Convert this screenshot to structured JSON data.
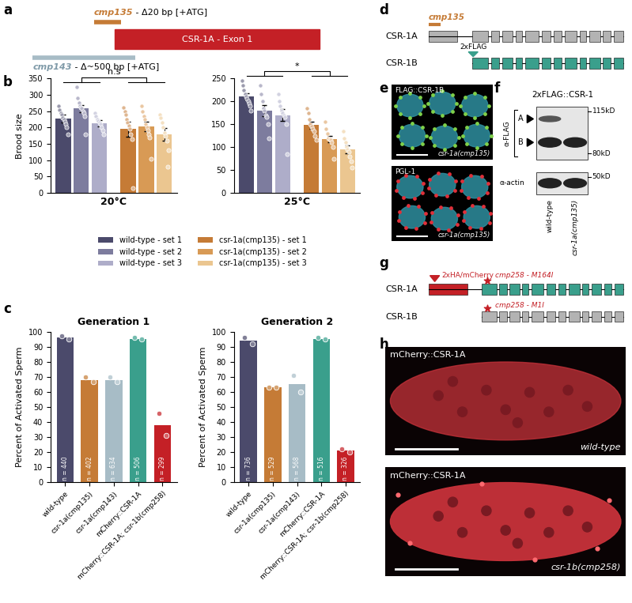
{
  "panel_labels": [
    "a",
    "b",
    "c",
    "d",
    "e",
    "f",
    "g",
    "h"
  ],
  "chart_data": [
    {
      "type": "bar",
      "ylabel": "Brood size",
      "categories": [
        "20°C"
      ],
      "ylim": [
        0,
        350
      ],
      "yticks": [
        0,
        50,
        100,
        150,
        200,
        250,
        300,
        350
      ],
      "significance": "n.s",
      "legend": "bottom",
      "series": [
        {
          "name": "wild-type - set 1",
          "color": "#4b4a6b",
          "values": [
            228
          ],
          "errors": [
            12
          ],
          "points": [
            [
              265,
              255,
              245,
              240,
              230,
              225,
              218,
              210,
              200,
              180
            ]
          ]
        },
        {
          "name": "wild-type - set 2",
          "color": "#7d7c9e",
          "values": [
            258
          ],
          "errors": [
            11
          ],
          "points": [
            [
              325,
              290,
              275,
              265,
              262,
              258,
              250,
              245,
              235,
              180
            ]
          ]
        },
        {
          "name": "wild-type - set 3",
          "color": "#aeadc9",
          "values": [
            213
          ],
          "errors": [
            9
          ],
          "points": [
            [
              245,
              235,
              225,
              220,
              215,
              210,
              200,
              190,
              180
            ]
          ]
        },
        {
          "name": "csr-1a(cmp135) - set 1",
          "color": "#c57b36",
          "values": [
            195
          ],
          "errors": [
            22
          ],
          "points": [
            [
              260,
              250,
              240,
              225,
              215,
              205,
              195,
              180,
              165,
              15
            ]
          ]
        },
        {
          "name": "csr-1a(cmp135) - set 2",
          "color": "#d89a55",
          "values": [
            203
          ],
          "errors": [
            15
          ],
          "points": [
            [
              265,
              250,
              235,
              225,
              210,
              200,
              190,
              180,
              170,
              105
            ]
          ]
        },
        {
          "name": "csr-1a(cmp135) - set 3",
          "color": "#ebc690",
          "values": [
            179
          ],
          "errors": [
            19
          ],
          "points": [
            [
              240,
              230,
              215,
              200,
              185,
              175,
              160,
              80,
              130
            ]
          ]
        }
      ]
    },
    {
      "type": "bar",
      "categories": [
        "25°C"
      ],
      "ylim": [
        0,
        250
      ],
      "yticks": [
        0,
        50,
        100,
        150,
        200,
        250
      ],
      "significance": "*",
      "series": [
        {
          "name": "wild-type - set 1",
          "color": "#4b4a6b",
          "values": [
            210
          ],
          "errors": [
            7
          ],
          "points": [
            [
              245,
              235,
              225,
              215,
              210,
              205,
              200,
              195,
              190,
              180
            ]
          ]
        },
        {
          "name": "wild-type - set 2",
          "color": "#7d7c9e",
          "values": [
            180
          ],
          "errors": [
            12
          ],
          "points": [
            [
              235,
              215,
              200,
              185,
              180,
              170,
              165,
              150,
              120
            ]
          ]
        },
        {
          "name": "wild-type - set 3",
          "color": "#aeadc9",
          "values": [
            170
          ],
          "errors": [
            13
          ],
          "points": [
            [
              215,
              200,
              190,
              180,
              175,
              170,
              165,
              150,
              85
            ]
          ]
        },
        {
          "name": "csr-1a(cmp135) - set 1",
          "color": "#c57b36",
          "values": [
            148
          ],
          "errors": [
            8
          ],
          "points": [
            [
              185,
              175,
              160,
              150,
              145,
              140,
              135,
              125,
              115
            ]
          ]
        },
        {
          "name": "csr-1a(cmp135) - set 2",
          "color": "#d89a55",
          "values": [
            118
          ],
          "errors": [
            7
          ],
          "points": [
            [
              155,
              140,
              130,
              120,
              118,
              115,
              110,
              100,
              75
            ]
          ]
        },
        {
          "name": "csr-1a(cmp135) - set 3",
          "color": "#ebc690",
          "values": [
            95
          ],
          "errors": [
            9
          ],
          "points": [
            [
              135,
              120,
              110,
              100,
              95,
              90,
              80,
              70,
              55
            ]
          ]
        }
      ]
    },
    {
      "type": "bar",
      "title": "Generation 1",
      "ylabel": "Percent of Activated Sperm",
      "categories": [
        "wild-type",
        "csr-1a(cmp135)",
        "csr-1a(cmp143)",
        "mCherry::CSR-1A",
        "mCherry::CSR-1A; csr-1b(cmp258)"
      ],
      "values": [
        96,
        68,
        68,
        95,
        38
      ],
      "colors": [
        "#4b4a6b",
        "#c57b36",
        "#a7bcc6",
        "#3a9f8c",
        "#c42026"
      ],
      "points": [
        [
          97,
          95
        ],
        [
          70,
          67
        ],
        [
          70,
          67
        ],
        [
          96,
          95
        ],
        [
          46,
          31
        ]
      ],
      "n_labels": [
        "n = 440",
        "n = 402",
        "n = 634",
        "n = 506",
        "n = 299"
      ],
      "ylim": [
        0,
        100
      ],
      "yticks": [
        0,
        10,
        20,
        30,
        40,
        50,
        60,
        70,
        80,
        90,
        100
      ]
    },
    {
      "type": "bar",
      "title": "Generation 2",
      "ylabel": "Percent of Activated Sperm",
      "categories": [
        "wild-type",
        "csr-1a(cmp135)",
        "csr-1a(cmp143)",
        "mCherry::CSR-1A",
        "mCherry::CSR-1A; csr-1b(cmp258)"
      ],
      "values": [
        94,
        63,
        65,
        95,
        21
      ],
      "colors": [
        "#4b4a6b",
        "#c57b36",
        "#a7bcc6",
        "#3a9f8c",
        "#c42026"
      ],
      "points": [
        [
          96,
          92
        ],
        [
          63,
          63
        ],
        [
          71,
          60
        ],
        [
          96,
          95
        ],
        [
          22,
          20
        ]
      ],
      "n_labels": [
        "n = 736",
        "n = 529",
        "n = 568",
        "n = 516",
        "n = 326"
      ],
      "ylim": [
        0,
        100
      ],
      "yticks": [
        0,
        10,
        20,
        30,
        40,
        50,
        60,
        70,
        80,
        90,
        100
      ]
    }
  ],
  "a": {
    "mutation_1": "cmp135",
    "mutation_1_detail": " - Δ20 bp [+ATG]",
    "exon": "CSR-1A - Exon 1",
    "mutation_2": "cmp143",
    "mutation_2_detail": " - Δ~500 bp [+ATG]"
  },
  "d": {
    "isoform_a": "CSR-1A",
    "isoform_b": "CSR-1B",
    "mutation": "cmp135",
    "tag": "2xFLAG"
  },
  "e": {
    "images": [
      {
        "label": "FLAG::CSR-1B",
        "genotype": "csr-1a(cmp135)"
      },
      {
        "label": "PGL-1",
        "genotype": "csr-1a(cmp135)"
      }
    ]
  },
  "f": {
    "title": "2xFLAG::CSR-1",
    "band_labels": [
      "A",
      "B"
    ],
    "antibodies": [
      "α-FLAG",
      "α-actin"
    ],
    "markers": [
      "115kD",
      "80kD",
      "50kD"
    ],
    "lanes": [
      "wild-type",
      "csr-1a(cmp135)"
    ]
  },
  "g": {
    "isoform_a": "CSR-1A",
    "isoform_b": "CSR-1B",
    "tag": "2xHA/mCherry",
    "mutation_a": "cmp258 - M164I",
    "mutation_b": "cmp258 - M1I"
  },
  "h": {
    "images": [
      {
        "label": "mCherry::CSR-1A",
        "genotype": "wild-type"
      },
      {
        "label": "mCherry::CSR-1A",
        "genotype": "csr-1b(cmp258)"
      }
    ]
  }
}
